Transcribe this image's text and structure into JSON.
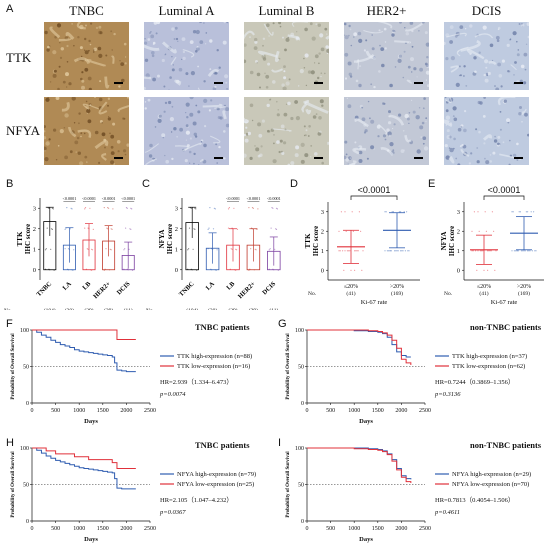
{
  "panel_labels": {
    "A": "A",
    "B": "B",
    "C": "C",
    "D": "D",
    "E": "E",
    "F": "F",
    "G": "G",
    "H": "H",
    "I": "I"
  },
  "ihc": {
    "columns": [
      "TNBC",
      "Luminal A",
      "Luminal B",
      "HER2+",
      "DCIS"
    ],
    "rows": [
      "TTK",
      "NFYA"
    ],
    "colors": {
      "TNBC": "#b08a55",
      "Luminal A": "#b9c0da",
      "Luminal B": "#c9c8b9",
      "HER2+": "#c2c8d6",
      "DCIS": "#bfcbe0"
    }
  },
  "chart_data": [
    {
      "type": "bar",
      "panel": "B",
      "ylabel_lines": [
        "TTK",
        "IHC score"
      ],
      "categories": [
        "TNBC",
        "LA",
        "LB",
        "HER2+",
        "DCIS"
      ],
      "counts": [
        "(104)",
        "(30)",
        "(29)",
        "(29)",
        "(11)"
      ],
      "values": [
        2.35,
        1.2,
        1.45,
        1.4,
        0.7
      ],
      "errors": [
        0.7,
        0.85,
        0.8,
        0.75,
        0.65
      ],
      "colors": [
        "#000000",
        "#2f5cb0",
        "#e0303a",
        "#c0392b",
        "#7b3fa0"
      ],
      "pvals": [
        "<0.0001",
        "<0.0001",
        "<0.0001",
        "<0.0001"
      ],
      "no_label": "No.",
      "ylim": [
        -0.5,
        3.5
      ],
      "yticks": [
        0,
        1,
        2,
        3
      ]
    },
    {
      "type": "bar",
      "panel": "C",
      "ylabel_lines": [
        "NFYA",
        "IHC score"
      ],
      "categories": [
        "TNBC",
        "LA",
        "LB",
        "HER2+",
        "DCIS"
      ],
      "counts": [
        "(104)",
        "(30)",
        "(29)",
        "(29)",
        "(11)"
      ],
      "values": [
        2.3,
        1.05,
        1.2,
        1.2,
        0.9
      ],
      "errors": [
        0.75,
        0.75,
        0.8,
        0.8,
        0.7
      ],
      "colors": [
        "#000000",
        "#2f5cb0",
        "#e0303a",
        "#c0392b",
        "#7b3fa0"
      ],
      "pvals": [
        "<0.0001",
        "<0.0001",
        "<0.0001"
      ],
      "no_label": "No.",
      "ylim": [
        -0.5,
        3.5
      ],
      "yticks": [
        0,
        1,
        2,
        3
      ]
    },
    {
      "type": "scatter",
      "panel": "D",
      "ylabel_lines": [
        "TTK",
        "IHC score"
      ],
      "categories": [
        "≤20%",
        ">20%"
      ],
      "counts": [
        "(41)",
        "(169)"
      ],
      "means": [
        1.2,
        2.05
      ],
      "errors": [
        0.85,
        0.9
      ],
      "colors": [
        "#e0303a",
        "#2f5cb0"
      ],
      "pval": "<0.0001",
      "xlabel": "Ki-67 rate",
      "no_label": "No.",
      "ylim": [
        -0.5,
        3.5
      ],
      "yticks": [
        0,
        1,
        2,
        3
      ]
    },
    {
      "type": "scatter",
      "panel": "E",
      "ylabel_lines": [
        "NFYA",
        "IHC score"
      ],
      "categories": [
        "≤20%",
        ">20%"
      ],
      "counts": [
        "(41)",
        "(169)"
      ],
      "means": [
        1.05,
        1.9
      ],
      "errors": [
        0.75,
        0.85
      ],
      "colors": [
        "#e0303a",
        "#2f5cb0"
      ],
      "pval": "<0.0001",
      "xlabel": "Ki-67 rate",
      "no_label": "No.",
      "ylim": [
        -0.5,
        3.5
      ],
      "yticks": [
        0,
        1,
        2,
        3
      ]
    },
    {
      "type": "line",
      "panel": "F",
      "title": "TNBC patients",
      "xlabel": "Days",
      "ylabel": "Probability of Overall Survival",
      "xlim": [
        0,
        2500
      ],
      "ylim": [
        0,
        100
      ],
      "xticks": [
        0,
        500,
        1000,
        1500,
        2000,
        2500
      ],
      "yticks": [
        0,
        50,
        100
      ],
      "series": [
        {
          "name": "TTK high-expression (n=88)",
          "color": "#2f5cb0",
          "x": [
            0,
            100,
            200,
            300,
            400,
            500,
            600,
            700,
            800,
            900,
            1000,
            1100,
            1200,
            1300,
            1400,
            1500,
            1600,
            1700,
            1750,
            1800,
            1900,
            2000,
            2100,
            2200
          ],
          "y": [
            100,
            97,
            93,
            90,
            86,
            83,
            80,
            78,
            76,
            73,
            71,
            70,
            69,
            68,
            67,
            66,
            65,
            63,
            55,
            45,
            44,
            43,
            43,
            43
          ]
        },
        {
          "name": "TTK low-expression (n=16)",
          "color": "#e0303a",
          "x": [
            0,
            500,
            1000,
            1500,
            1750,
            1800,
            2000,
            2200
          ],
          "y": [
            100,
            100,
            100,
            100,
            100,
            87,
            87,
            87
          ]
        }
      ],
      "stats": [
        "HR=2.939（1.334–6.473）",
        "p=0.0074"
      ]
    },
    {
      "type": "line",
      "panel": "G",
      "title": "non-TNBC patients",
      "xlabel": "Days",
      "ylabel": "Probability of Overall Survival",
      "xlim": [
        0,
        2500
      ],
      "ylim": [
        0,
        100
      ],
      "xticks": [
        0,
        500,
        1000,
        1500,
        2000,
        2500
      ],
      "yticks": [
        0,
        50,
        100
      ],
      "series": [
        {
          "name": "TTK high-expression (n=37)",
          "color": "#2f5cb0",
          "x": [
            0,
            500,
            1000,
            1300,
            1500,
            1600,
            1700,
            1800,
            1900,
            2000,
            2100,
            2200
          ],
          "y": [
            100,
            100,
            99,
            98,
            97,
            95,
            90,
            80,
            70,
            65,
            63,
            63
          ]
        },
        {
          "name": "TTK low-expression (n=62)",
          "color": "#e0303a",
          "x": [
            0,
            500,
            1000,
            1300,
            1500,
            1600,
            1700,
            1800,
            1900,
            2000,
            2100,
            2200
          ],
          "y": [
            100,
            100,
            100,
            99,
            98,
            96,
            93,
            86,
            75,
            60,
            55,
            52
          ]
        }
      ],
      "stats": [
        "HR=0.7244（0.3869–1.356）",
        "p=0.3136"
      ]
    },
    {
      "type": "line",
      "panel": "H",
      "title": "TNBC patients",
      "xlabel": "Days",
      "ylabel": "Probability of Overall Survival",
      "xlim": [
        0,
        2500
      ],
      "ylim": [
        0,
        100
      ],
      "xticks": [
        0,
        500,
        1000,
        1500,
        2000,
        2500
      ],
      "yticks": [
        0,
        50,
        100
      ],
      "series": [
        {
          "name": "NFYA high-expression (n=79)",
          "color": "#2f5cb0",
          "x": [
            0,
            100,
            200,
            300,
            400,
            500,
            600,
            700,
            800,
            900,
            1000,
            1100,
            1200,
            1300,
            1400,
            1500,
            1600,
            1700,
            1750,
            1800,
            1900,
            2000,
            2100,
            2200
          ],
          "y": [
            100,
            97,
            93,
            89,
            86,
            83,
            81,
            79,
            77,
            75,
            73,
            72,
            71,
            70,
            69,
            68,
            67,
            66,
            58,
            45,
            44,
            44,
            44,
            44
          ]
        },
        {
          "name": "NFYA low-expression (n=25)",
          "color": "#e0303a",
          "x": [
            0,
            300,
            500,
            700,
            900,
            1000,
            1200,
            1400,
            1600,
            1700,
            1800,
            1900,
            2000,
            2200
          ],
          "y": [
            100,
            96,
            92,
            92,
            88,
            88,
            84,
            84,
            84,
            80,
            72,
            72,
            72,
            72
          ]
        }
      ],
      "stats": [
        "HR=2.105（1.047–4.232）",
        "p=0.0367"
      ]
    },
    {
      "type": "line",
      "panel": "I",
      "title": "non-TNBC patients",
      "xlabel": "Days",
      "ylabel": "Probability of Overall Survival",
      "xlim": [
        0,
        2500
      ],
      "ylim": [
        0,
        100
      ],
      "xticks": [
        0,
        500,
        1000,
        1500,
        2000,
        2500
      ],
      "yticks": [
        0,
        50,
        100
      ],
      "series": [
        {
          "name": "NFYA high-expression (n=29)",
          "color": "#2f5cb0",
          "x": [
            0,
            500,
            1000,
            1300,
            1500,
            1600,
            1700,
            1800,
            1900,
            2000,
            2100,
            2200
          ],
          "y": [
            100,
            100,
            100,
            99,
            98,
            96,
            92,
            84,
            72,
            62,
            58,
            57
          ]
        },
        {
          "name": "NFYA low-expression (n=70)",
          "color": "#e0303a",
          "x": [
            0,
            500,
            1000,
            1300,
            1500,
            1600,
            1700,
            1800,
            1900,
            2000,
            2100,
            2200
          ],
          "y": [
            100,
            100,
            99,
            98,
            97,
            95,
            91,
            82,
            70,
            60,
            54,
            52
          ]
        }
      ],
      "stats": [
        "HR=0.7813（0.4054–1.506）",
        "p=0.4611"
      ]
    }
  ]
}
